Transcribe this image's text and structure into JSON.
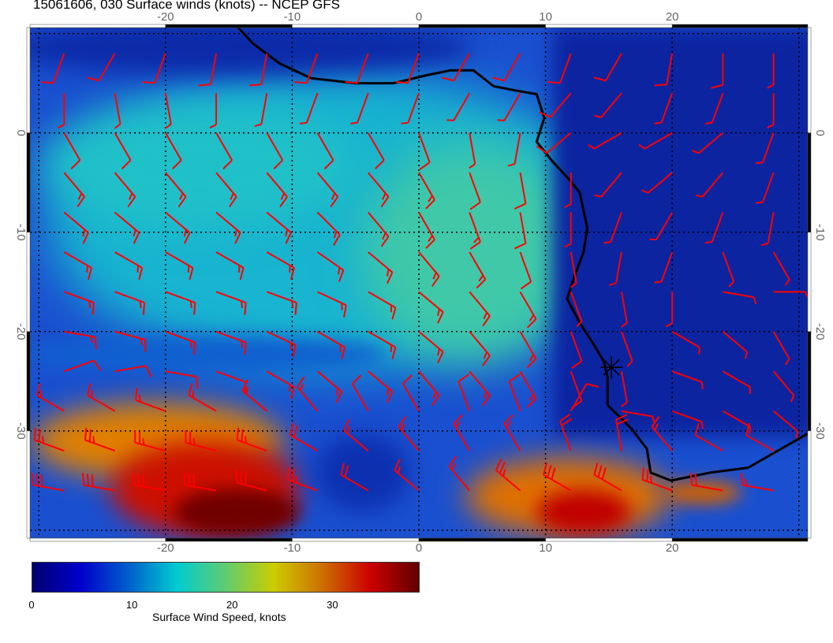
{
  "title": "15061606, 030 Surface winds (knots) -- NCEP GFS",
  "map": {
    "lon_range": [
      -30.7,
      30.7
    ],
    "lat_range": [
      -40.8,
      10.6
    ],
    "lon_ticks": [
      "-20",
      "-10",
      "0",
      "10",
      "20"
    ],
    "lon_tick_values": [
      -20,
      -10,
      0,
      10,
      20
    ],
    "lat_ticks": [
      "0",
      "-10",
      "-20",
      "-30"
    ],
    "lat_tick_values": [
      0,
      -10,
      -20,
      -30
    ],
    "barb_color": "#ff0000",
    "coast_color": "#000000",
    "marker": {
      "lon": 15.2,
      "lat": -23.6,
      "icon": "star-marker-icon"
    },
    "barbs": {
      "lons": [
        -28,
        -24,
        -20,
        -16,
        -12,
        -8,
        -4,
        0,
        4,
        8,
        12,
        16,
        20,
        24,
        28
      ],
      "rows": [
        {
          "lat": 8,
          "dir": [
            200,
            210,
            200,
            190,
            190,
            200,
            200,
            200,
            210,
            210,
            200,
            210,
            190,
            180,
            180
          ],
          "spd": [
            10,
            10,
            10,
            10,
            10,
            10,
            10,
            10,
            10,
            10,
            10,
            10,
            10,
            10,
            5
          ]
        },
        {
          "lat": 4,
          "dir": [
            180,
            170,
            170,
            180,
            190,
            200,
            200,
            200,
            210,
            210,
            220,
            220,
            200,
            200,
            180
          ],
          "spd": [
            5,
            5,
            5,
            5,
            5,
            5,
            5,
            5,
            5,
            5,
            10,
            5,
            5,
            5,
            5
          ]
        },
        {
          "lat": 0,
          "dir": [
            150,
            150,
            150,
            150,
            150,
            150,
            150,
            160,
            170,
            190,
            230,
            240,
            240,
            230,
            200
          ],
          "spd": [
            10,
            10,
            10,
            10,
            10,
            10,
            10,
            10,
            5,
            5,
            10,
            5,
            5,
            5,
            5
          ]
        },
        {
          "lat": -4,
          "dir": [
            140,
            140,
            140,
            140,
            140,
            140,
            140,
            150,
            160,
            170,
            180,
            220,
            230,
            220,
            200
          ],
          "spd": [
            15,
            15,
            15,
            15,
            15,
            15,
            15,
            15,
            10,
            10,
            5,
            5,
            5,
            5,
            5
          ]
        },
        {
          "lat": -8,
          "dir": [
            130,
            130,
            130,
            130,
            130,
            135,
            140,
            150,
            160,
            170,
            180,
            200,
            210,
            200,
            190
          ],
          "spd": [
            15,
            15,
            15,
            15,
            15,
            15,
            15,
            15,
            15,
            10,
            5,
            5,
            5,
            5,
            5
          ]
        },
        {
          "lat": -12,
          "dir": [
            120,
            120,
            120,
            120,
            120,
            125,
            130,
            140,
            150,
            160,
            170,
            190,
            200,
            160,
            150
          ],
          "spd": [
            15,
            15,
            15,
            15,
            15,
            15,
            15,
            15,
            15,
            10,
            5,
            5,
            5,
            5,
            5
          ]
        },
        {
          "lat": -16,
          "dir": [
            110,
            110,
            110,
            110,
            110,
            115,
            120,
            130,
            140,
            150,
            160,
            170,
            180,
            100,
            90
          ],
          "spd": [
            15,
            15,
            15,
            15,
            15,
            15,
            15,
            15,
            15,
            15,
            5,
            5,
            5,
            5,
            5
          ]
        },
        {
          "lat": -20,
          "dir": [
            100,
            105,
            110,
            110,
            115,
            120,
            120,
            130,
            140,
            150,
            160,
            160,
            120,
            130,
            150
          ],
          "spd": [
            15,
            15,
            15,
            15,
            15,
            15,
            15,
            15,
            15,
            15,
            10,
            5,
            5,
            5,
            5
          ]
        },
        {
          "lat": -24,
          "dir": [
            70,
            80,
            100,
            110,
            120,
            130,
            130,
            140,
            140,
            150,
            160,
            170,
            110,
            120,
            140
          ],
          "spd": [
            10,
            10,
            10,
            10,
            15,
            15,
            15,
            15,
            15,
            15,
            10,
            5,
            5,
            5,
            5
          ]
        },
        {
          "lat": -28,
          "dir": [
            300,
            300,
            290,
            300,
            310,
            320,
            330,
            330,
            340,
            340,
            30,
            100,
            110,
            120,
            130
          ],
          "spd": [
            15,
            15,
            15,
            15,
            15,
            15,
            10,
            10,
            10,
            10,
            10,
            5,
            5,
            5,
            5
          ]
        },
        {
          "lat": -32,
          "dir": [
            290,
            290,
            285,
            285,
            290,
            300,
            310,
            320,
            330,
            330,
            340,
            350,
            320,
            300,
            300
          ],
          "spd": [
            25,
            25,
            25,
            25,
            25,
            20,
            15,
            15,
            15,
            15,
            20,
            20,
            15,
            10,
            10
          ]
        },
        {
          "lat": -36,
          "dir": [
            280,
            280,
            280,
            280,
            285,
            290,
            300,
            310,
            320,
            310,
            300,
            300,
            290,
            280,
            280
          ],
          "spd": [
            30,
            30,
            30,
            30,
            30,
            25,
            20,
            15,
            15,
            25,
            30,
            30,
            25,
            20,
            15
          ]
        }
      ]
    }
  },
  "colorbar": {
    "title": "Surface Wind Speed, knots",
    "range": [
      0,
      38.7
    ],
    "tick_labels": [
      "0",
      "10",
      "20",
      "30"
    ],
    "tick_values": [
      0,
      10,
      20,
      30
    ],
    "colors": [
      "#000070",
      "#0000cc",
      "#0060cc",
      "#00ccd0",
      "#60cc70",
      "#cccc00",
      "#cc7000",
      "#cc0000",
      "#600000"
    ]
  }
}
